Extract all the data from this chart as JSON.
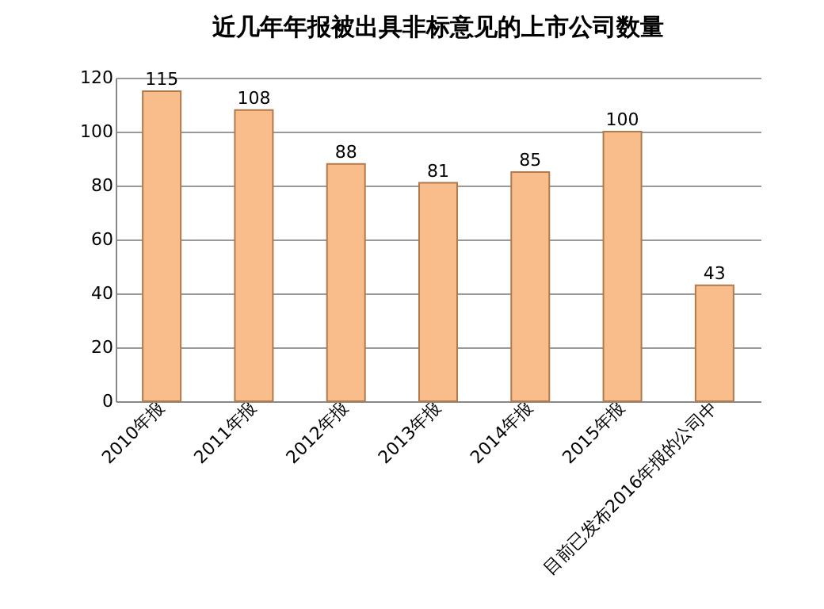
{
  "chart_data": {
    "type": "bar",
    "title": "近几年年报被出具非标意见的上市公司数量",
    "categories": [
      "2010年报",
      "2011年报",
      "2012年报",
      "2013年报",
      "2014年报",
      "2015年报",
      "目前已发布2016年报的公司中"
    ],
    "values": [
      115,
      108,
      88,
      81,
      85,
      100,
      43
    ],
    "color": "#f9bd8c",
    "ylim": [
      0,
      120
    ],
    "yticks": [
      0,
      20,
      40,
      60,
      80,
      100,
      120
    ],
    "grid": "y",
    "data_labels": true
  }
}
